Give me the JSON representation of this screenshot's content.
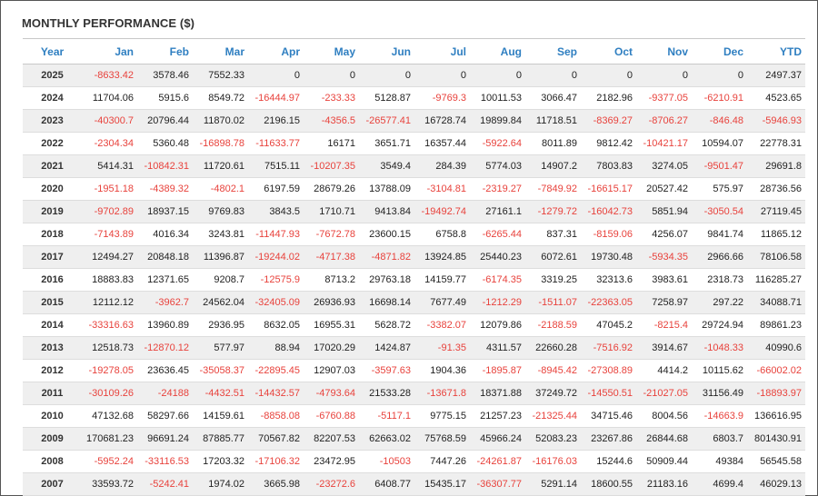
{
  "title": "MONTHLY PERFORMANCE ($)",
  "colors": {
    "negative": "#e8423c",
    "header": "#2f7fc1"
  },
  "columns": [
    "Year",
    "Jan",
    "Feb",
    "Mar",
    "Apr",
    "May",
    "Jun",
    "Jul",
    "Aug",
    "Sep",
    "Oct",
    "Nov",
    "Dec",
    "YTD"
  ],
  "rows": [
    [
      "2025",
      "-8633.42",
      "3578.46",
      "7552.33",
      "0",
      "0",
      "0",
      "0",
      "0",
      "0",
      "0",
      "0",
      "0",
      "2497.37"
    ],
    [
      "2024",
      "11704.06",
      "5915.6",
      "8549.72",
      "-16444.97",
      "-233.33",
      "5128.87",
      "-9769.3",
      "10011.53",
      "3066.47",
      "2182.96",
      "-9377.05",
      "-6210.91",
      "4523.65"
    ],
    [
      "2023",
      "-40300.7",
      "20796.44",
      "11870.02",
      "2196.15",
      "-4356.5",
      "-26577.41",
      "16728.74",
      "19899.84",
      "11718.51",
      "-8369.27",
      "-8706.27",
      "-846.48",
      "-5946.93"
    ],
    [
      "2022",
      "-2304.34",
      "5360.48",
      "-16898.78",
      "-11633.77",
      "16171",
      "3651.71",
      "16357.44",
      "-5922.64",
      "8011.89",
      "9812.42",
      "-10421.17",
      "10594.07",
      "22778.31"
    ],
    [
      "2021",
      "5414.31",
      "-10842.31",
      "11720.61",
      "7515.11",
      "-10207.35",
      "3549.4",
      "284.39",
      "5774.03",
      "14907.2",
      "7803.83",
      "3274.05",
      "-9501.47",
      "29691.8"
    ],
    [
      "2020",
      "-1951.18",
      "-4389.32",
      "-4802.1",
      "6197.59",
      "28679.26",
      "13788.09",
      "-3104.81",
      "-2319.27",
      "-7849.92",
      "-16615.17",
      "20527.42",
      "575.97",
      "28736.56"
    ],
    [
      "2019",
      "-9702.89",
      "18937.15",
      "9769.83",
      "3843.5",
      "1710.71",
      "9413.84",
      "-19492.74",
      "27161.1",
      "-1279.72",
      "-16042.73",
      "5851.94",
      "-3050.54",
      "27119.45"
    ],
    [
      "2018",
      "-7143.89",
      "4016.34",
      "3243.81",
      "-11447.93",
      "-7672.78",
      "23600.15",
      "6758.8",
      "-6265.44",
      "837.31",
      "-8159.06",
      "4256.07",
      "9841.74",
      "11865.12"
    ],
    [
      "2017",
      "12494.27",
      "20848.18",
      "11396.87",
      "-19244.02",
      "-4717.38",
      "-4871.82",
      "13924.85",
      "25440.23",
      "6072.61",
      "19730.48",
      "-5934.35",
      "2966.66",
      "78106.58"
    ],
    [
      "2016",
      "18883.83",
      "12371.65",
      "9208.7",
      "-12575.9",
      "8713.2",
      "29763.18",
      "14159.77",
      "-6174.35",
      "3319.25",
      "32313.6",
      "3983.61",
      "2318.73",
      "116285.27"
    ],
    [
      "2015",
      "12112.12",
      "-3962.7",
      "24562.04",
      "-32405.09",
      "26936.93",
      "16698.14",
      "7677.49",
      "-1212.29",
      "-1511.07",
      "-22363.05",
      "7258.97",
      "297.22",
      "34088.71"
    ],
    [
      "2014",
      "-33316.63",
      "13960.89",
      "2936.95",
      "8632.05",
      "16955.31",
      "5628.72",
      "-3382.07",
      "12079.86",
      "-2188.59",
      "47045.2",
      "-8215.4",
      "29724.94",
      "89861.23"
    ],
    [
      "2013",
      "12518.73",
      "-12870.12",
      "577.97",
      "88.94",
      "17020.29",
      "1424.87",
      "-91.35",
      "4311.57",
      "22660.28",
      "-7516.92",
      "3914.67",
      "-1048.33",
      "40990.6"
    ],
    [
      "2012",
      "-19278.05",
      "23636.45",
      "-35058.37",
      "-22895.45",
      "12907.03",
      "-3597.63",
      "1904.36",
      "-1895.87",
      "-8945.42",
      "-27308.89",
      "4414.2",
      "10115.62",
      "-66002.02"
    ],
    [
      "2011",
      "-30109.26",
      "-24188",
      "-4432.51",
      "-14432.57",
      "-4793.64",
      "21533.28",
      "-13671.8",
      "18371.88",
      "37249.72",
      "-14550.51",
      "-21027.05",
      "31156.49",
      "-18893.97"
    ],
    [
      "2010",
      "47132.68",
      "58297.66",
      "14159.61",
      "-8858.08",
      "-6760.88",
      "-5117.1",
      "9775.15",
      "21257.23",
      "-21325.44",
      "34715.46",
      "8004.56",
      "-14663.9",
      "136616.95"
    ],
    [
      "2009",
      "170681.23",
      "96691.24",
      "87885.77",
      "70567.82",
      "82207.53",
      "62663.02",
      "75768.59",
      "45966.24",
      "52083.23",
      "23267.86",
      "26844.68",
      "6803.7",
      "801430.91"
    ],
    [
      "2008",
      "-5952.24",
      "-33116.53",
      "17203.32",
      "-17106.32",
      "23472.95",
      "-10503",
      "7447.26",
      "-24261.87",
      "-16176.03",
      "15244.6",
      "50909.44",
      "49384",
      "56545.58"
    ],
    [
      "2007",
      "33593.72",
      "-5242.41",
      "1974.02",
      "3665.98",
      "-23272.6",
      "6408.77",
      "15435.17",
      "-36307.77",
      "5291.14",
      "18600.55",
      "21183.16",
      "4699.4",
      "46029.13"
    ]
  ]
}
